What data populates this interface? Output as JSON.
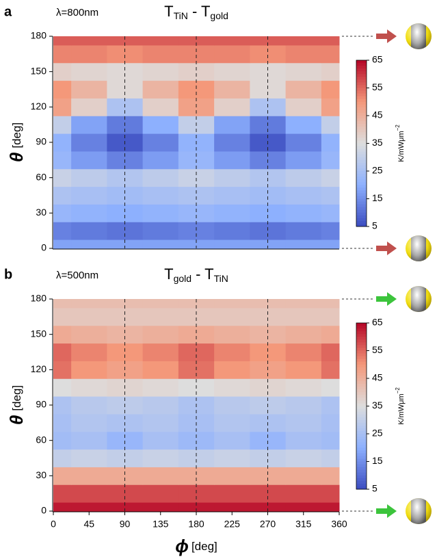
{
  "chart_data": [
    {
      "type": "heatmap",
      "panel_label": "a",
      "annotation": "λ=800nm",
      "annotation_color": "#e8141c",
      "title": [
        "T",
        "TiN",
        " - T",
        "gold"
      ],
      "x": [
        0,
        45,
        90,
        135,
        180,
        225,
        270,
        315,
        360
      ],
      "y": [
        0,
        15,
        30,
        45,
        60,
        75,
        90,
        105,
        120,
        135,
        150,
        165,
        180
      ],
      "z": [
        [
          18,
          18,
          18,
          18,
          18,
          18,
          18,
          18,
          18
        ],
        [
          13,
          12,
          11,
          12,
          13,
          12,
          11,
          12,
          13
        ],
        [
          22,
          21,
          20,
          21,
          22,
          21,
          20,
          21,
          22
        ],
        [
          26,
          25,
          24,
          25,
          26,
          25,
          24,
          25,
          26
        ],
        [
          31,
          29,
          27,
          29,
          31,
          29,
          27,
          29,
          31
        ],
        [
          22,
          17,
          13,
          17,
          22,
          17,
          13,
          17,
          22
        ],
        [
          21,
          13,
          7,
          13,
          21,
          13,
          7,
          13,
          21
        ],
        [
          30,
          18,
          12,
          20,
          30,
          18,
          12,
          20,
          30
        ],
        [
          48,
          38,
          26,
          38,
          48,
          38,
          26,
          38,
          48
        ],
        [
          50,
          44,
          36,
          44,
          50,
          44,
          36,
          44,
          50
        ],
        [
          38,
          37,
          36,
          37,
          38,
          37,
          36,
          37,
          38
        ],
        [
          52,
          52,
          51,
          52,
          52,
          52,
          51,
          52,
          52
        ],
        [
          56,
          56,
          56,
          56,
          56,
          56,
          56,
          56,
          56
        ]
      ],
      "xlim": [
        0,
        360
      ],
      "ylim": [
        0,
        180
      ],
      "yticks": [
        0,
        30,
        60,
        90,
        120,
        150,
        180
      ],
      "vlines": [
        90,
        180,
        270
      ],
      "ylabel": [
        "θ",
        "[deg]"
      ],
      "colorscale": [
        "#3b4cc0",
        "#8db0fe",
        "#dddddd",
        "#f4987a",
        "#b40426"
      ],
      "clim": [
        5,
        65
      ],
      "cticks": [
        5,
        15,
        25,
        35,
        45,
        55,
        65
      ],
      "colorbar_label": [
        "K/mWμm",
        "−2"
      ],
      "arrow_color": "#c0504d"
    },
    {
      "type": "heatmap",
      "panel_label": "b",
      "annotation": "λ=500nm",
      "annotation_color": "#1a9a1a",
      "title": [
        "T",
        "gold",
        " - T",
        "TiN"
      ],
      "x": [
        0,
        45,
        90,
        135,
        180,
        225,
        270,
        315,
        360
      ],
      "y": [
        0,
        15,
        30,
        45,
        60,
        75,
        90,
        105,
        120,
        135,
        150,
        165,
        180
      ],
      "z": [
        [
          63,
          63,
          63,
          63,
          63,
          63,
          63,
          63,
          63
        ],
        [
          58,
          58,
          58,
          58,
          58,
          58,
          58,
          58,
          58
        ],
        [
          46,
          46,
          46,
          46,
          46,
          46,
          46,
          46,
          46
        ],
        [
          30,
          31,
          30,
          31,
          30,
          31,
          30,
          31,
          30
        ],
        [
          24,
          25,
          22,
          25,
          23,
          25,
          22,
          25,
          24
        ],
        [
          25,
          27,
          26,
          27,
          25,
          27,
          26,
          27,
          25
        ],
        [
          26,
          28,
          29,
          28,
          26,
          28,
          29,
          28,
          26
        ],
        [
          35,
          36,
          37,
          36,
          35,
          36,
          37,
          36,
          35
        ],
        [
          54,
          50,
          48,
          50,
          54,
          50,
          48,
          50,
          54
        ],
        [
          55,
          52,
          50,
          52,
          55,
          52,
          50,
          52,
          55
        ],
        [
          46,
          45,
          44,
          45,
          46,
          45,
          44,
          45,
          46
        ],
        [
          40,
          40,
          40,
          40,
          40,
          40,
          40,
          40,
          40
        ],
        [
          42,
          42,
          42,
          42,
          42,
          42,
          42,
          42,
          42
        ]
      ],
      "xlim": [
        0,
        360
      ],
      "ylim": [
        0,
        180
      ],
      "yticks": [
        0,
        30,
        60,
        90,
        120,
        150,
        180
      ],
      "xticks": [
        0,
        45,
        90,
        135,
        180,
        225,
        270,
        315,
        360
      ],
      "vlines": [
        90,
        180,
        270
      ],
      "ylabel": [
        "θ",
        "[deg]"
      ],
      "xlabel": [
        "ϕ",
        "[deg]"
      ],
      "colorscale": [
        "#3b4cc0",
        "#8db0fe",
        "#dddddd",
        "#f4987a",
        "#b40426"
      ],
      "clim": [
        5,
        65
      ],
      "cticks": [
        5,
        15,
        25,
        35,
        45,
        55,
        65
      ],
      "colorbar_label": [
        "K/mWμm",
        "−2"
      ],
      "arrow_color": "#3cc43c"
    }
  ]
}
